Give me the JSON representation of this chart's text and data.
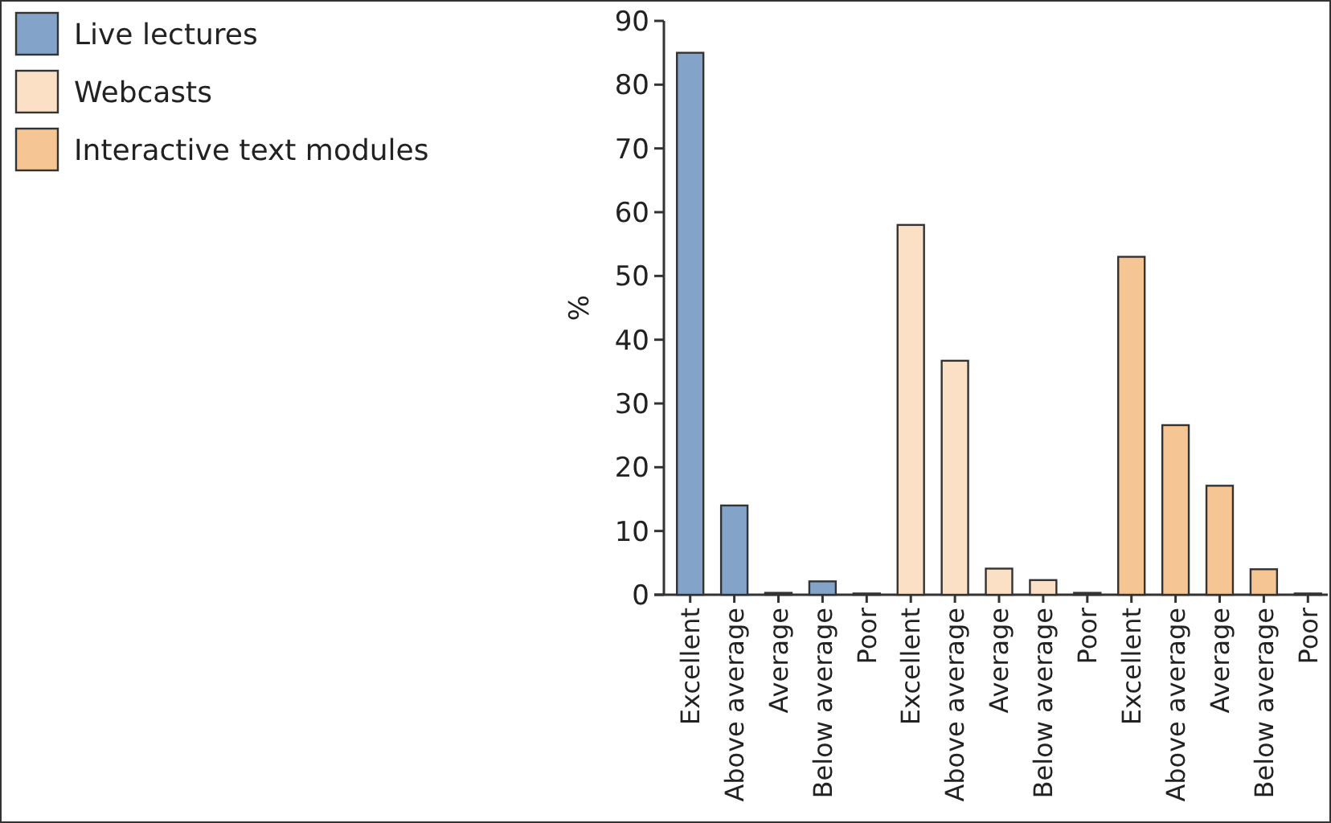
{
  "chart_data": {
    "type": "bar",
    "ylabel": "%",
    "categories": [
      "Excellent",
      "Above average",
      "Average",
      "Below average",
      "Poor",
      "Excellent",
      "Above average",
      "Average",
      "Below average",
      "Poor",
      "Excellent",
      "Above average",
      "Average",
      "Below average",
      "Poor"
    ],
    "series": [
      {
        "name": "Live lectures",
        "color": "#84a3c9",
        "values": [
          85,
          14,
          0.3,
          2.1,
          0.2,
          null,
          null,
          null,
          null,
          null,
          null,
          null,
          null,
          null,
          null
        ]
      },
      {
        "name": "Webcasts",
        "color": "#fbe0c6",
        "values": [
          null,
          null,
          null,
          null,
          null,
          58,
          36.7,
          4.1,
          2.3,
          0.3,
          null,
          null,
          null,
          null,
          null
        ]
      },
      {
        "name": "Interactive text modules",
        "color": "#f6c594",
        "values": [
          null,
          null,
          null,
          null,
          null,
          null,
          null,
          null,
          null,
          null,
          53,
          26.6,
          17.1,
          4,
          0.2
        ]
      }
    ],
    "ylim": [
      0,
      90
    ],
    "yticks": [
      0,
      10,
      20,
      30,
      40,
      50,
      60,
      70,
      80,
      90
    ],
    "legend": "left",
    "grid": false
  }
}
